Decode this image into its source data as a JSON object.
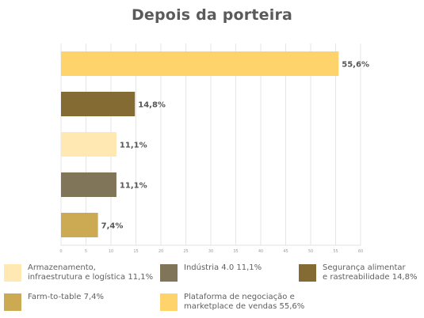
{
  "chart_data": {
    "type": "bar",
    "orientation": "horizontal",
    "title": "Depois da porteira",
    "categories": [
      "Plataforma de negociação e marketplace de vendas",
      "Segurança alimentar e rastreabilidade",
      "Armazenamento, infraestrutura e logística",
      "Indústria 4.0",
      "Farm-to-table"
    ],
    "values": [
      55.6,
      14.8,
      11.1,
      11.1,
      7.4
    ],
    "value_labels": [
      "55,6%",
      "14,8%",
      "11,1%",
      "11,1%",
      "7,4%"
    ],
    "colors": [
      "#FFD36B",
      "#846B34",
      "#FFE8B2",
      "#807558",
      "#CCAA54"
    ],
    "xlim": [
      0,
      60
    ],
    "xticks": [
      0,
      5,
      10,
      15,
      20,
      25,
      30,
      35,
      40,
      45,
      50,
      55,
      60
    ],
    "xtick_labels": [
      "0",
      "5",
      "10",
      "15",
      "20",
      "25",
      "30",
      "35",
      "40",
      "45",
      "50",
      "55",
      "60"
    ],
    "grid": true,
    "legend_position": "bottom",
    "legend": [
      {
        "label": "Armazenamento,\ninfraestrutura e logística 11,1%",
        "color": "#FFE8B2"
      },
      {
        "label": "Indústria 4.0 11,1%",
        "color": "#807558"
      },
      {
        "label": "Segurança alimentar\ne rastreabilidade 14,8%",
        "color": "#846B34"
      },
      {
        "label": "Farm-to-table 7,4%",
        "color": "#CCAA54"
      },
      {
        "label": "Plataforma de negociação e\nmarketplace de vendas 55,6%",
        "color": "#FFD36B"
      }
    ]
  }
}
